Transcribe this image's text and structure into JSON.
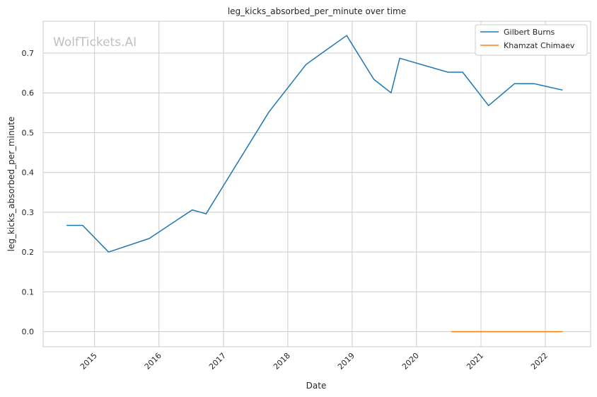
{
  "chart_data": {
    "type": "line",
    "title": "leg_kicks_absorbed_per_minute over time",
    "xlabel": "Date",
    "ylabel": "leg_kicks_absorbed_per_minute",
    "watermark": "WolfTickets.AI",
    "ylim": [
      -0.038,
      0.78
    ],
    "xlim": [
      "2014-03-15",
      "2022-09-15"
    ],
    "yticks": [
      0.0,
      0.1,
      0.2,
      0.3,
      0.4,
      0.5,
      0.6,
      0.7
    ],
    "ytick_labels": [
      "0.0",
      "0.1",
      "0.2",
      "0.3",
      "0.4",
      "0.5",
      "0.6",
      "0.7"
    ],
    "xticks": [
      "2015-01-01",
      "2016-01-01",
      "2017-01-01",
      "2018-01-01",
      "2019-01-01",
      "2020-01-01",
      "2021-01-01",
      "2022-01-01"
    ],
    "xtick_labels": [
      "2015",
      "2016",
      "2017",
      "2018",
      "2019",
      "2020",
      "2021",
      "2022"
    ],
    "grid": true,
    "legend_position": "top-right",
    "series": [
      {
        "name": "Gilbert Burns",
        "color": "#1f77b4",
        "x": [
          "2014-07-26",
          "2014-10-25",
          "2015-03-21",
          "2015-11-07",
          "2016-07-08",
          "2016-09-24",
          "2017-09-16",
          "2018-04-14",
          "2018-07-07",
          "2018-12-01",
          "2019-05-04",
          "2019-08-10",
          "2019-09-28",
          "2020-06-27",
          "2020-09-19",
          "2021-02-13",
          "2021-07-10",
          "2021-10-30",
          "2022-04-09"
        ],
        "y": [
          0.267,
          0.267,
          0.2,
          0.234,
          0.306,
          0.296,
          0.552,
          0.671,
          0.698,
          0.744,
          0.634,
          0.6,
          0.687,
          0.652,
          0.652,
          0.568,
          0.623,
          0.623,
          0.607
        ]
      },
      {
        "name": "Khamzat Chimaev",
        "color": "#ff7f0e",
        "x": [
          "2020-07-16",
          "2020-07-26",
          "2020-09-19",
          "2021-10-30",
          "2022-04-09"
        ],
        "y": [
          0.0,
          0.0,
          0.0,
          0.0,
          0.0
        ]
      }
    ]
  }
}
